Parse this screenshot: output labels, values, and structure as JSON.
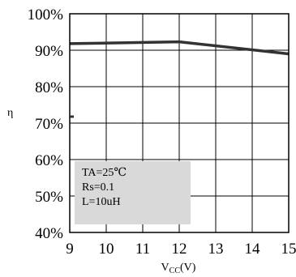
{
  "chart_data": {
    "type": "line",
    "x": [
      9,
      12,
      15
    ],
    "series": [
      {
        "values": [
          91.8,
          92.3,
          89
        ]
      }
    ],
    "xlim": [
      9,
      15
    ],
    "ylim": [
      40,
      100
    ],
    "x_ticks": [
      "9",
      "10",
      "11",
      "12",
      "13",
      "14",
      "15"
    ],
    "y_ticks": [
      "40%",
      "50%",
      "60%",
      "70%",
      "80%",
      "90%",
      "100%"
    ],
    "ylabel": "η",
    "xlabel_main": "V",
    "xlabel_sub": "CC",
    "xlabel_unit": "(V)",
    "grid": true,
    "annotation": [
      "TA=25℃",
      "Rs=0.1",
      "L=10uH"
    ],
    "colors": {
      "line": "#333333",
      "box": "#d9d9d9",
      "grid": "#000000"
    }
  }
}
